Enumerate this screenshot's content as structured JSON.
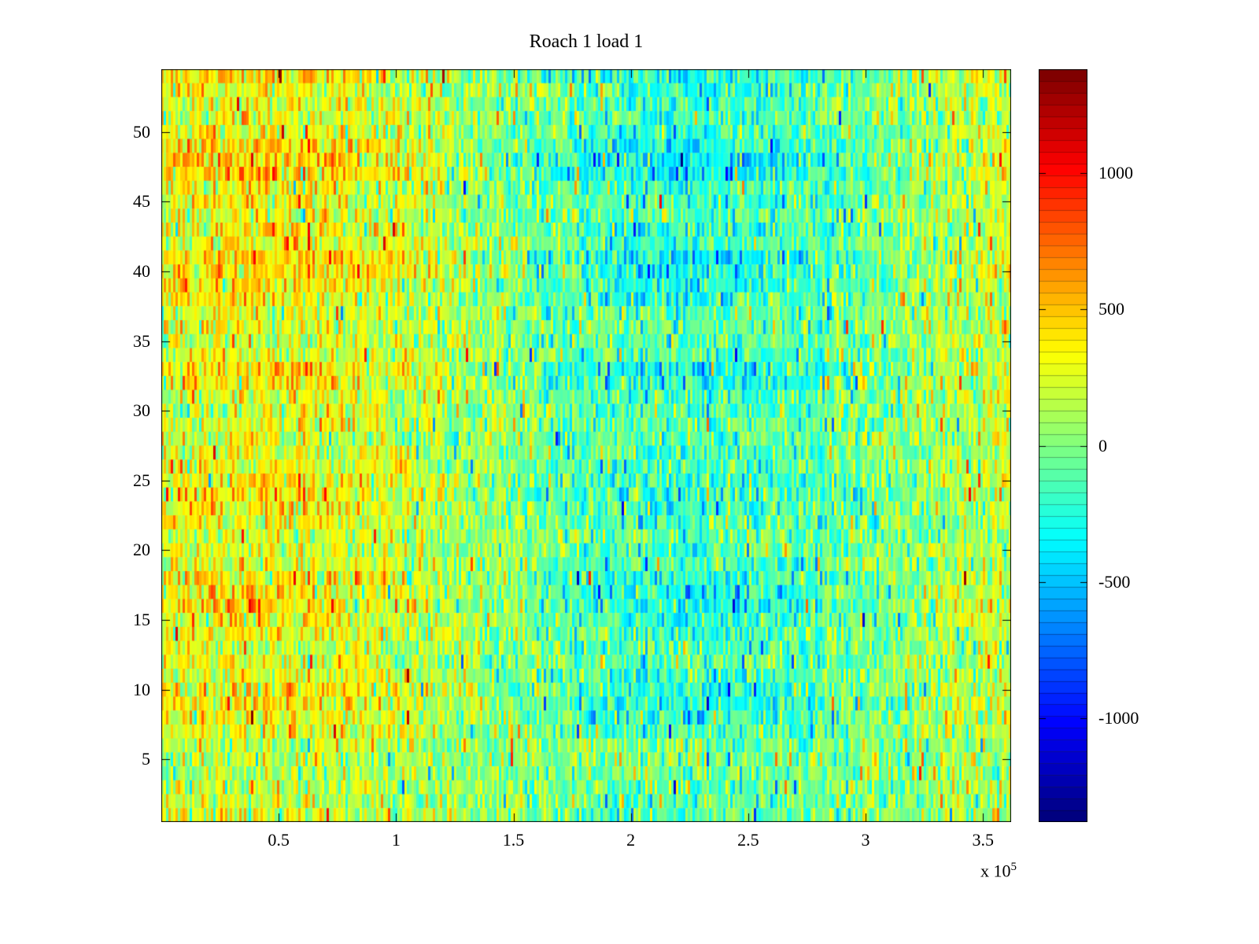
{
  "chart_data": {
    "type": "heatmap",
    "title": "Roach 1 load 1",
    "xlabel": "",
    "ylabel": "",
    "colormap": "jet",
    "grid": false,
    "legend_position": "right-colorbar",
    "rows": 54,
    "cols": 360,
    "xlim": [
      0,
      362000
    ],
    "ylim": [
      0.5,
      54.5
    ],
    "clim": [
      -1380,
      1380
    ],
    "x_ticks": [
      0.5,
      1,
      1.5,
      2,
      2.5,
      3,
      3.5
    ],
    "x_tick_labels": [
      "0.5",
      "1",
      "1.5",
      "2",
      "2.5",
      "3",
      "3.5"
    ],
    "x_tick_scale": 100000,
    "x_exponent_prefix": "x 10",
    "x_exponent_value": "5",
    "y_ticks": [
      5,
      10,
      15,
      20,
      25,
      30,
      35,
      40,
      45,
      50
    ],
    "y_tick_labels": [
      "5",
      "10",
      "15",
      "20",
      "25",
      "30",
      "35",
      "40",
      "45",
      "50"
    ],
    "colorbar_ticks": [
      1000,
      500,
      0,
      -500,
      -1000
    ],
    "colorbar_tick_labels": [
      "1000",
      "500",
      "0",
      "-500",
      "-1000"
    ],
    "pattern": {
      "description": "Noisy sensor heatmap: yellow-green overall, warm orange-red bias on the left quarter (strongest around rows 38-52 and 14-23), cool cyan-blue trough centered near x=2.4e5 (strongest around rows 8-16, 20-24 and 38-52), returning to yellow-green at the right edge; fine vertical speckle noise throughout",
      "base": 60,
      "wave_center_x": 40000,
      "wave_length": 380000,
      "amp_base": 170,
      "amp_row_variation": 150,
      "top_rows_boost": 1.3,
      "bottom_rows_damp": 0.55,
      "noise_std": 215,
      "spike_prob": 0.03,
      "spike_min": 250,
      "spike_max": 750,
      "seed": 20240613
    }
  }
}
